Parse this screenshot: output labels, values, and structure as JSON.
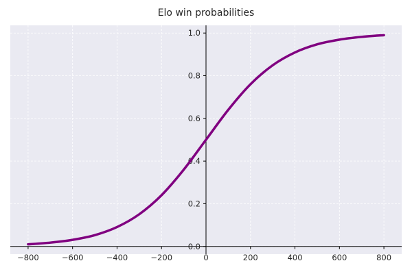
{
  "chart_data": {
    "type": "line",
    "title": "Elo win probabilities",
    "xlabel": "",
    "ylabel": "",
    "xlim": [
      -880,
      880
    ],
    "ylim": [
      -0.036,
      1.036
    ],
    "xticks": [
      -800,
      -600,
      -400,
      -200,
      0,
      200,
      400,
      600,
      800
    ],
    "xtick_labels": [
      "−800",
      "−600",
      "−400",
      "−200",
      "0",
      "200",
      "400",
      "600",
      "800"
    ],
    "yticks": [
      0.0,
      0.2,
      0.4,
      0.6,
      0.8,
      1.0
    ],
    "ytick_labels": [
      "0.0",
      "0.2",
      "0.4",
      "0.6",
      "0.8",
      "1.0"
    ],
    "grid": true,
    "axes_through_origin": true,
    "colors": {
      "background": "#eaeaf2",
      "grid": "#ffffff",
      "line": "#800080",
      "axis": "#000000"
    },
    "series": [
      {
        "x": [
          -800,
          -700,
          -600,
          -500,
          -400,
          -300,
          -200,
          -100,
          0,
          100,
          200,
          300,
          400,
          500,
          600,
          700,
          800
        ],
        "y": [
          0.01,
          0.018,
          0.031,
          0.053,
          0.091,
          0.151,
          0.24,
          0.36,
          0.5,
          0.64,
          0.76,
          0.849,
          0.909,
          0.947,
          0.969,
          0.982,
          0.99
        ]
      }
    ]
  }
}
